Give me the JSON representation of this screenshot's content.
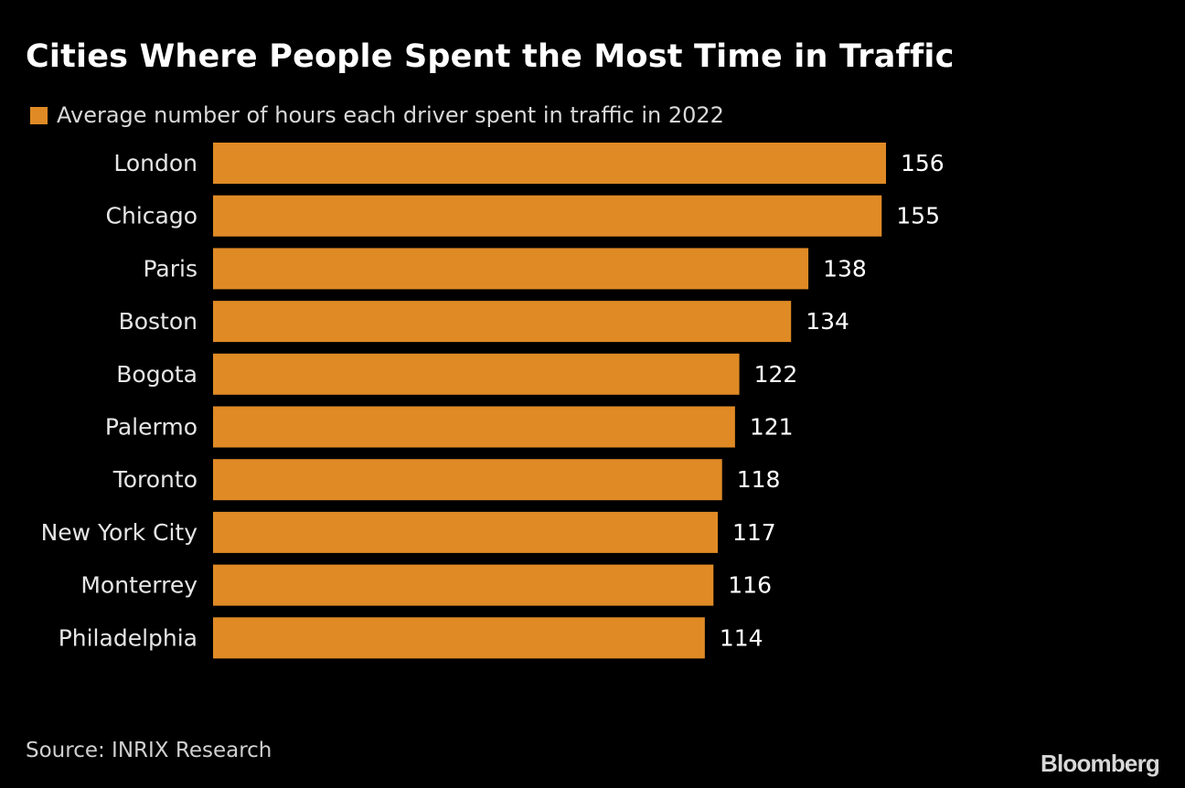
{
  "chart_data": {
    "type": "bar",
    "orientation": "horizontal",
    "title": "Cities Where People Spent the Most Time in Traffic",
    "categories": [
      "London",
      "Chicago",
      "Paris",
      "Boston",
      "Bogota",
      "Palermo",
      "Toronto",
      "New York City",
      "Monterrey",
      "Philadelphia"
    ],
    "series": [
      {
        "name": "Average number of hours each driver spent in traffic in 2022",
        "values": [
          156,
          155,
          138,
          134,
          122,
          121,
          118,
          117,
          116,
          114
        ],
        "color": "#df8a25"
      }
    ],
    "xlim": [
      0,
      156
    ],
    "grid": false,
    "legend_position": "top-left",
    "source": "Source: INRIX Research"
  },
  "brand": "Bloomberg",
  "colors": {
    "background": "#000000",
    "bar": "#df8a25",
    "text": "#ffffff"
  }
}
